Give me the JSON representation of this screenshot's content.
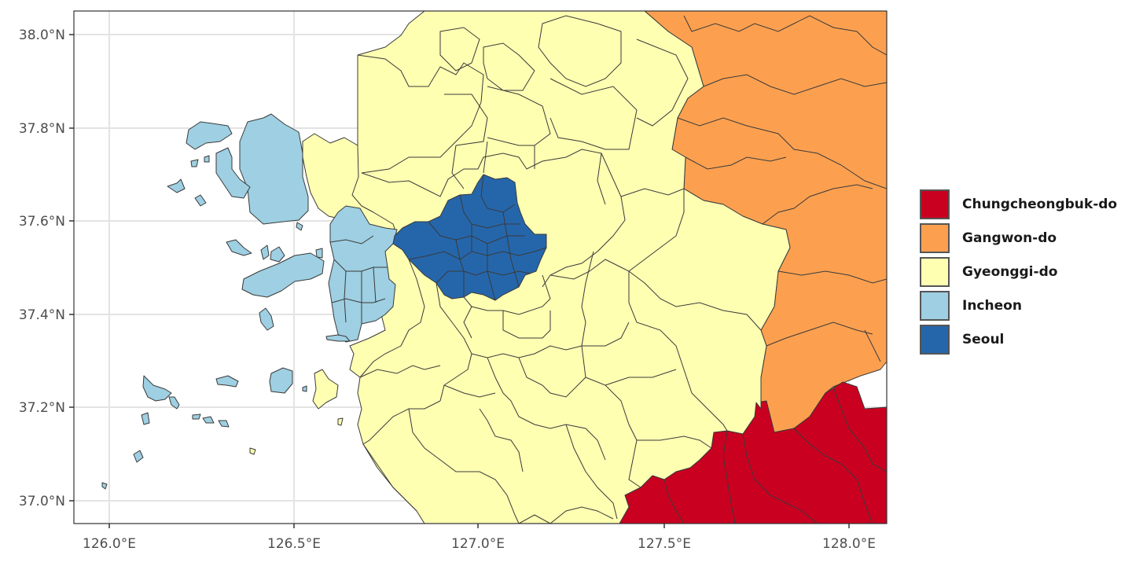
{
  "map": {
    "x_axis": {
      "ticks": [
        "126.0°E",
        "126.5°E",
        "127.0°E",
        "127.5°E",
        "128.0°E"
      ]
    },
    "y_axis": {
      "ticks": [
        "37.0°N",
        "37.2°N",
        "37.4°N",
        "37.6°N",
        "37.8°N",
        "38.0°N"
      ]
    },
    "legend": {
      "items": [
        {
          "label": "Chungcheongbuk-do",
          "color": "#ca0020"
        },
        {
          "label": "Gangwon-do",
          "color": "#fca050"
        },
        {
          "label": "Gyeonggi-do",
          "color": "#ffffb2"
        },
        {
          "label": "Incheon",
          "color": "#9ecfe2"
        },
        {
          "label": "Seoul",
          "color": "#2566ab"
        }
      ]
    }
  }
}
